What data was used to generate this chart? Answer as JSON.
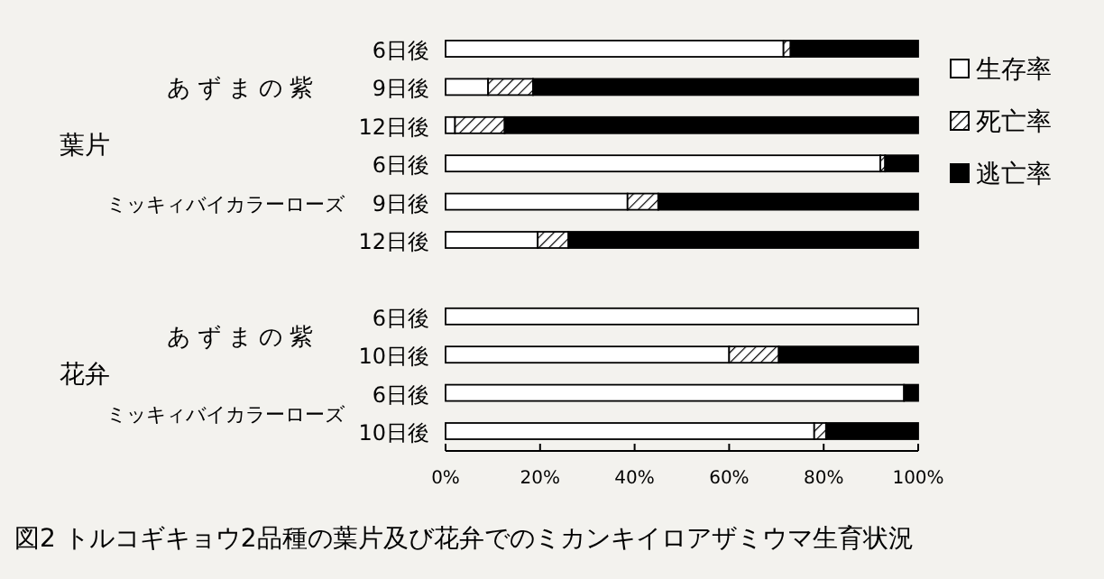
{
  "chart_data": {
    "type": "bar",
    "orientation": "horizontal",
    "stacked": true,
    "title": "図2 トルコギキョウ2品種の葉片及び花弁でのミカンキイロアザミウマ生育状況",
    "categories": [
      "6日後",
      "9日後",
      "12日後",
      "6日後",
      "9日後",
      "12日後",
      null,
      "6日後",
      "10日後",
      "6日後",
      "10日後"
    ],
    "series": [
      {
        "name": "生存率",
        "color": "#ffffff",
        "values": [
          71.5,
          9,
          2,
          92,
          38.5,
          19.5,
          null,
          100,
          60,
          97,
          78
        ]
      },
      {
        "name": "死亡率",
        "color": "#000000",
        "values": [
          1.5,
          9.5,
          10.5,
          1,
          6.5,
          6.5,
          null,
          0,
          10.5,
          0,
          2.5
        ]
      },
      {
        "name": "逃亡率",
        "color": "#000000",
        "values": [
          27,
          81.5,
          87.5,
          7,
          55,
          74,
          null,
          0,
          29.5,
          3,
          19.5
        ]
      }
    ],
    "xlim": [
      0,
      100
    ],
    "xticks": [
      {
        "value": 0,
        "label": "0%"
      },
      {
        "value": 20,
        "label": "20%"
      },
      {
        "value": 40,
        "label": "40%"
      },
      {
        "value": 60,
        "label": "60%"
      },
      {
        "value": 80,
        "label": "80%"
      },
      {
        "value": 100,
        "label": "100%"
      }
    ],
    "annotations": [
      "あずまの紫",
      "ミッキィバイカラーローズ",
      "葉片",
      "あずまの紫",
      "ミッキィバイカラーローズ",
      "花弁"
    ],
    "legend": "right",
    "grid": false
  }
}
